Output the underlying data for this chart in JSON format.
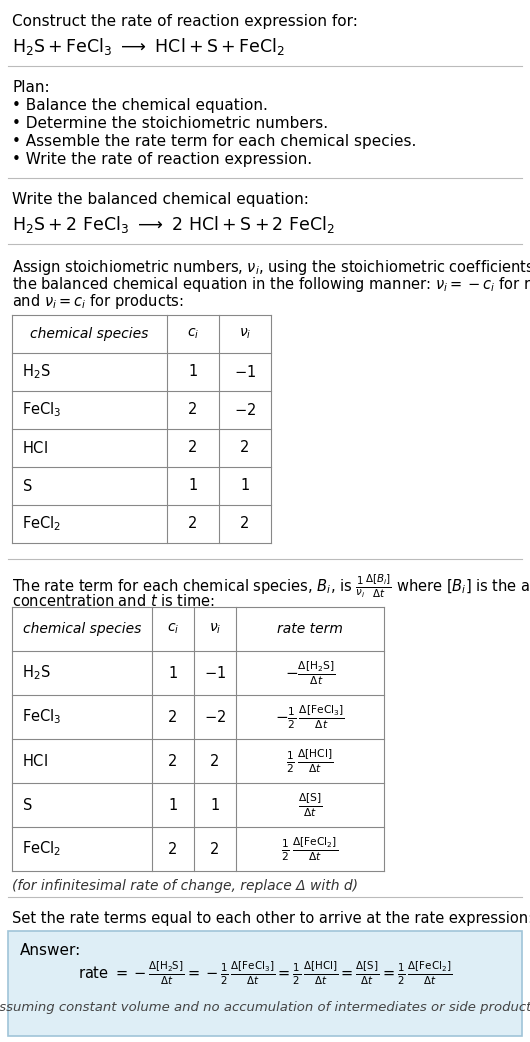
{
  "bg_color": "#ffffff",
  "text_color": "#000000",
  "section_line_color": "#cccccc",
  "answer_box_color": "#deeef6",
  "answer_box_edge": "#a0c4d8",
  "title_text": "Construct the rate of reaction expression for:",
  "plan_title": "Plan:",
  "plan_items": [
    "• Balance the chemical equation.",
    "• Determine the stoichiometric numbers.",
    "• Assemble the rate term for each chemical species.",
    "• Write the rate of reaction expression."
  ],
  "balanced_title": "Write the balanced chemical equation:",
  "stoich_intro_lines": [
    "Assign stoichiometric numbers, $\\nu_i$, using the stoichiometric coefficients, $c_i$, from",
    "the balanced chemical equation in the following manner: $\\nu_i = -c_i$ for reactants",
    "and $\\nu_i = c_i$ for products:"
  ],
  "rate_intro_line2": "concentration and $t$ is time:",
  "infinitesimal_note": "(for infinitesimal rate of change, replace Δ with d)",
  "set_equal_text": "Set the rate terms equal to each other to arrive at the rate expression:",
  "answer_label": "Answer:",
  "assuming_note": "(assuming constant volume and no accumulation of intermediates or side products)"
}
